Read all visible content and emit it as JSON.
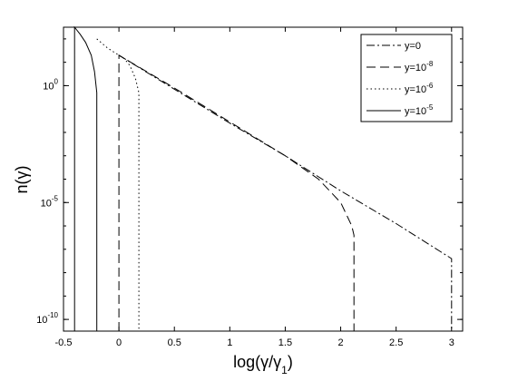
{
  "chart_data": {
    "type": "line",
    "xlabel": "log(γ/γ1)",
    "ylabel": "n(γ)",
    "xlim": [
      -0.5,
      3.1
    ],
    "ylim_log10": [
      -10.5,
      2.5
    ],
    "y_scale": "log",
    "grid": false,
    "legend_placement": "top-right",
    "x_ticks": [
      -0.5,
      0,
      0.5,
      1,
      1.5,
      2,
      2.5,
      3
    ],
    "x_tick_labels": [
      "-0.5",
      "0",
      "0.5",
      "1",
      "1.5",
      "2",
      "2.5",
      "3"
    ],
    "y_ticks": [
      {
        "log10": 0,
        "base": "10",
        "exp": "0"
      },
      {
        "log10": -5,
        "base": "10",
        "exp": "-5"
      },
      {
        "log10": -10,
        "base": "10",
        "exp": "-10"
      }
    ],
    "series": [
      {
        "name": {
          "base": "y=0",
          "exp": ""
        },
        "dash": "dashdot",
        "points": [
          [
            0,
            1.3
          ],
          [
            0.5,
            -0.15
          ],
          [
            1,
            -1.6
          ],
          [
            1.5,
            -3.0
          ],
          [
            2,
            -4.5
          ],
          [
            2.5,
            -5.9
          ],
          [
            3,
            -7.4
          ],
          [
            3,
            -10.5
          ]
        ]
      },
      {
        "name": {
          "base": "y=10",
          "exp": "-8"
        },
        "dash": "dashed",
        "points": [
          [
            0,
            -10.5
          ],
          [
            0,
            1.3
          ],
          [
            0.5,
            -0.1
          ],
          [
            1,
            -1.55
          ],
          [
            1.5,
            -3.0
          ],
          [
            1.8,
            -4.0
          ],
          [
            2.0,
            -5.0
          ],
          [
            2.1,
            -6.0
          ],
          [
            2.12,
            -6.4
          ],
          [
            2.12,
            -10.5
          ]
        ]
      },
      {
        "name": {
          "base": "y=10",
          "exp": "-6"
        },
        "dash": "dotted",
        "points": [
          [
            -0.2,
            2.0
          ],
          [
            -0.1,
            1.6
          ],
          [
            0,
            1.3
          ],
          [
            0.05,
            1.15
          ],
          [
            0.1,
            0.85
          ],
          [
            0.15,
            0.3
          ],
          [
            0.18,
            -0.3
          ],
          [
            0.18,
            -10.5
          ]
        ]
      },
      {
        "name": {
          "base": "y=10",
          "exp": "-5"
        },
        "dash": "solid",
        "points": [
          [
            -0.4,
            -10.5
          ],
          [
            -0.4,
            2.5
          ],
          [
            -0.35,
            2.2
          ],
          [
            -0.3,
            1.85
          ],
          [
            -0.25,
            1.3
          ],
          [
            -0.22,
            0.6
          ],
          [
            -0.2,
            -0.3
          ],
          [
            -0.2,
            -10.5
          ]
        ]
      }
    ]
  }
}
